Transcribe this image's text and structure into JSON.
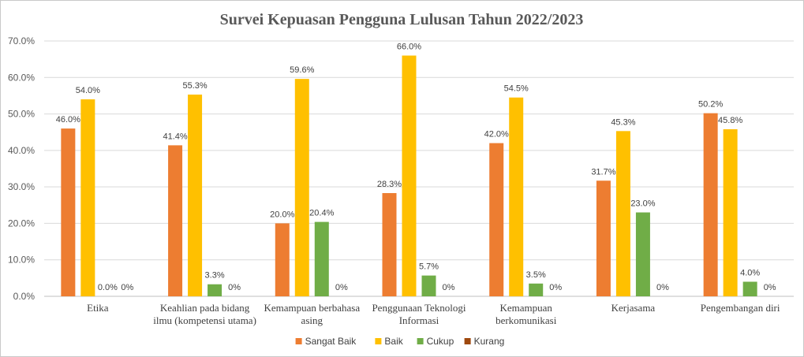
{
  "chart_data": {
    "type": "bar",
    "title": "Survei Kepuasan Pengguna Lulusan Tahun 2022/2023",
    "xlabel": "",
    "ylabel": "",
    "ylim": [
      0,
      70
    ],
    "yticks": [
      "0.0%",
      "10.0%",
      "20.0%",
      "30.0%",
      "40.0%",
      "50.0%",
      "60.0%",
      "70.0%"
    ],
    "grid": true,
    "legend_position": "bottom",
    "categories": [
      [
        "Etika"
      ],
      [
        "Keahlian pada bidang",
        "ilmu (kompetensi utama)"
      ],
      [
        "Kemampuan berbahasa",
        "asing"
      ],
      [
        "Penggunaan Teknologi",
        "Informasi"
      ],
      [
        "Kemampuan",
        "berkomunikasi"
      ],
      [
        "Kerjasama"
      ],
      [
        "Pengembangan diri"
      ]
    ],
    "series": [
      {
        "name": "Sangat Baik",
        "color": "#ED7D31",
        "values": [
          46.0,
          41.4,
          20.0,
          28.3,
          42.0,
          31.7,
          50.2
        ],
        "labels": [
          "46.0%",
          "41.4%",
          "20.0%",
          "28.3%",
          "42.0%",
          "31.7%",
          "50.2%"
        ]
      },
      {
        "name": "Baik",
        "color": "#FFC000",
        "values": [
          54.0,
          55.3,
          59.6,
          66.0,
          54.5,
          45.3,
          45.8
        ],
        "labels": [
          "54.0%",
          "55.3%",
          "59.6%",
          "66.0%",
          "54.5%",
          "45.3%",
          "45.8%"
        ]
      },
      {
        "name": "Cukup",
        "color": "#70AD47",
        "values": [
          0.0,
          3.3,
          20.4,
          5.7,
          3.5,
          23.0,
          4.0
        ],
        "labels": [
          "0.0%",
          "3.3%",
          "20.4%",
          "5.7%",
          "3.5%",
          "23.0%",
          "4.0%"
        ]
      },
      {
        "name": "Kurang",
        "color": "#9E480E",
        "values": [
          0,
          0,
          0,
          0,
          0,
          0,
          0
        ],
        "labels": [
          "0%",
          "0%",
          "0%",
          "0%",
          "0%",
          "0%",
          "0%"
        ]
      }
    ]
  }
}
